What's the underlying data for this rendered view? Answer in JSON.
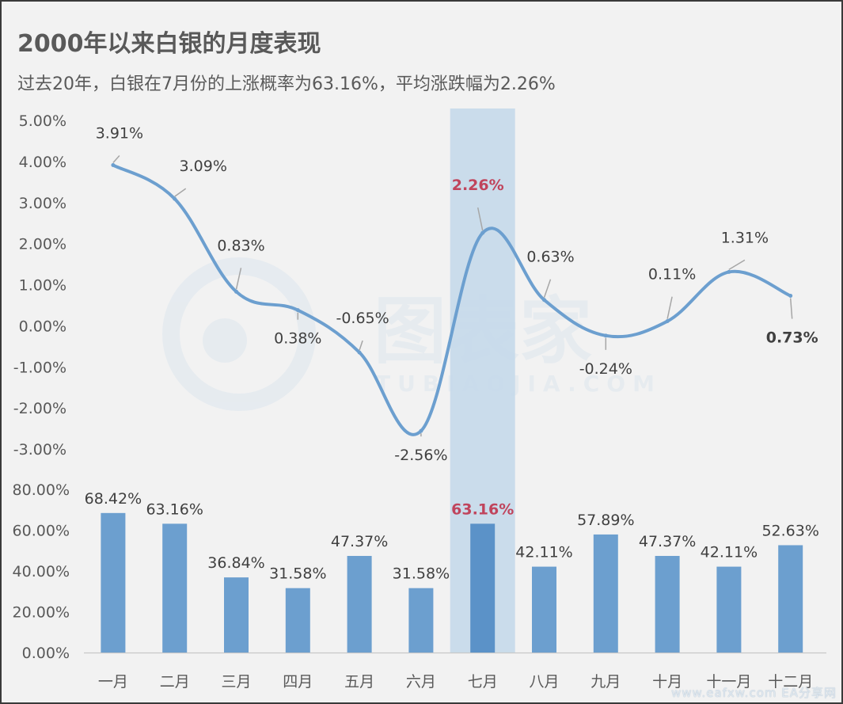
{
  "title": "2000年以来白银的月度表现",
  "subtitle": "过去20年，白银在7月份的上涨概率为63.16%，平均涨跌幅为2.26%",
  "watermark": {
    "cn": "图表家",
    "en": "TUBIAOJIA.COM",
    "footer": "www.eafxw.com  EA分享网"
  },
  "colors": {
    "line": "#6c9fcf",
    "bar": "#6c9fcf",
    "highlight_bar": "#5b92c8",
    "highlight_band": "#c5d9ea",
    "highlight_label": "#c0445c",
    "text": "#595959",
    "label": "#404040"
  },
  "chart_data": [
    {
      "type": "line",
      "categories": [
        "一月",
        "二月",
        "三月",
        "四月",
        "五月",
        "六月",
        "七月",
        "八月",
        "九月",
        "十月",
        "十一月",
        "十二月"
      ],
      "values": [
        3.91,
        3.09,
        0.83,
        0.38,
        -0.65,
        -2.56,
        2.26,
        0.63,
        -0.24,
        0.11,
        1.31,
        0.73
      ],
      "data_labels": [
        "3.91%",
        "3.09%",
        "0.83%",
        "0.38%",
        "-0.65%",
        "-2.56%",
        "2.26%",
        "0.63%",
        "-0.24%",
        "0.11%",
        "1.31%",
        "0.73%"
      ],
      "y_ticks": [
        "5.00%",
        "4.00%",
        "3.00%",
        "2.00%",
        "1.00%",
        "0.00%",
        "-1.00%",
        "-2.00%",
        "-3.00%"
      ],
      "ylim": [
        -3,
        5
      ],
      "highlight_index": 6,
      "smooth": true
    },
    {
      "type": "bar",
      "categories": [
        "一月",
        "二月",
        "三月",
        "四月",
        "五月",
        "六月",
        "七月",
        "八月",
        "九月",
        "十月",
        "十一月",
        "十二月"
      ],
      "values": [
        68.42,
        63.16,
        36.84,
        31.58,
        47.37,
        31.58,
        63.16,
        42.11,
        57.89,
        47.37,
        42.11,
        52.63
      ],
      "data_labels": [
        "68.42%",
        "63.16%",
        "36.84%",
        "31.58%",
        "47.37%",
        "31.58%",
        "63.16%",
        "42.11%",
        "57.89%",
        "47.37%",
        "42.11%",
        "52.63%"
      ],
      "y_ticks": [
        "80.00%",
        "60.00%",
        "40.00%",
        "20.00%",
        "0.00%"
      ],
      "ylim": [
        0,
        80
      ],
      "highlight_index": 6
    }
  ]
}
